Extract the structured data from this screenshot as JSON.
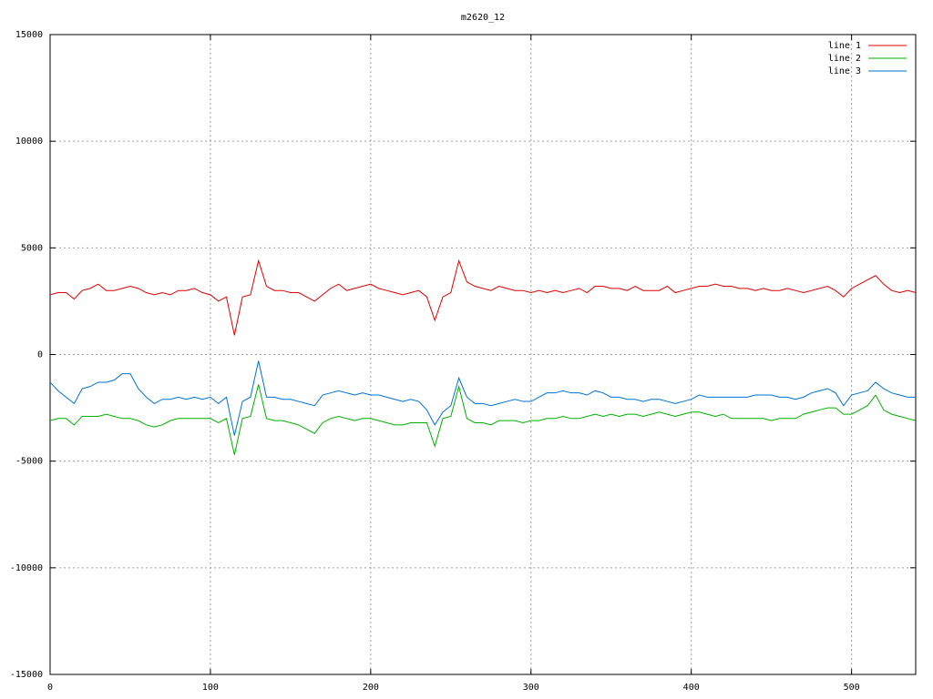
{
  "chart_data": {
    "type": "line",
    "title": "m2620_12",
    "x": [
      0,
      5,
      10,
      15,
      20,
      25,
      30,
      35,
      40,
      45,
      50,
      55,
      60,
      65,
      70,
      75,
      80,
      85,
      90,
      95,
      100,
      105,
      110,
      115,
      120,
      125,
      130,
      135,
      140,
      145,
      150,
      155,
      160,
      165,
      170,
      175,
      180,
      185,
      190,
      195,
      200,
      205,
      210,
      215,
      220,
      225,
      230,
      235,
      240,
      245,
      250,
      255,
      260,
      265,
      270,
      275,
      280,
      285,
      290,
      295,
      300,
      305,
      310,
      315,
      320,
      325,
      330,
      335,
      340,
      345,
      350,
      355,
      360,
      365,
      370,
      375,
      380,
      385,
      390,
      395,
      400,
      405,
      410,
      415,
      420,
      425,
      430,
      435,
      440,
      445,
      450,
      455,
      460,
      465,
      470,
      475,
      480,
      485,
      490,
      495,
      500,
      505,
      510,
      515,
      520,
      525,
      530,
      535,
      540
    ],
    "series": [
      {
        "name": "line 1",
        "color": "#e00000",
        "values": [
          2800,
          2900,
          2900,
          2600,
          3000,
          3100,
          3300,
          3000,
          3000,
          3100,
          3200,
          3100,
          2900,
          2800,
          2900,
          2800,
          3000,
          3000,
          3100,
          2900,
          2800,
          2500,
          2700,
          900,
          2700,
          2800,
          4400,
          3200,
          3000,
          3000,
          2900,
          2900,
          2700,
          2500,
          2800,
          3100,
          3300,
          3000,
          3100,
          3200,
          3300,
          3100,
          3000,
          2900,
          2800,
          2900,
          3000,
          2700,
          1600,
          2700,
          2900,
          4400,
          3400,
          3200,
          3100,
          3000,
          3200,
          3100,
          3000,
          3000,
          2900,
          3000,
          2900,
          3000,
          2900,
          3000,
          3100,
          2900,
          3200,
          3200,
          3100,
          3100,
          3000,
          3200,
          3000,
          3000,
          3000,
          3200,
          2900,
          3000,
          3100,
          3200,
          3200,
          3300,
          3200,
          3200,
          3100,
          3100,
          3000,
          3100,
          3000,
          3000,
          3100,
          3000,
          2900,
          3000,
          3100,
          3200,
          3000,
          2700,
          3100,
          3300,
          3500,
          3700,
          3300,
          3000,
          2900,
          3000,
          2900
        ]
      },
      {
        "name": "line 2",
        "color": "#00b000",
        "values": [
          -3100,
          -3000,
          -3000,
          -3300,
          -2900,
          -2900,
          -2900,
          -2800,
          -2900,
          -3000,
          -3000,
          -3100,
          -3300,
          -3400,
          -3300,
          -3100,
          -3000,
          -3000,
          -3000,
          -3000,
          -3000,
          -3200,
          -3000,
          -4700,
          -3000,
          -2900,
          -1400,
          -3000,
          -3100,
          -3100,
          -3200,
          -3300,
          -3500,
          -3700,
          -3200,
          -3000,
          -2900,
          -3000,
          -3100,
          -3000,
          -3000,
          -3100,
          -3200,
          -3300,
          -3300,
          -3200,
          -3200,
          -3200,
          -4300,
          -3000,
          -2900,
          -1500,
          -3000,
          -3200,
          -3200,
          -3300,
          -3100,
          -3100,
          -3100,
          -3200,
          -3100,
          -3100,
          -3000,
          -3000,
          -2900,
          -3000,
          -3000,
          -2900,
          -2800,
          -2900,
          -2800,
          -2900,
          -2800,
          -2800,
          -2900,
          -2800,
          -2700,
          -2800,
          -2900,
          -2800,
          -2700,
          -2700,
          -2800,
          -2900,
          -2800,
          -3000,
          -3000,
          -3000,
          -3000,
          -3000,
          -3100,
          -3000,
          -3000,
          -3000,
          -2800,
          -2700,
          -2600,
          -2500,
          -2500,
          -2800,
          -2800,
          -2600,
          -2400,
          -1900,
          -2600,
          -2800,
          -2900,
          -3000,
          -3100
        ]
      },
      {
        "name": "line 3",
        "color": "#0072d0",
        "values": [
          -1300,
          -1700,
          -2000,
          -2300,
          -1600,
          -1500,
          -1300,
          -1300,
          -1200,
          -900,
          -900,
          -1600,
          -2000,
          -2300,
          -2100,
          -2100,
          -2000,
          -2100,
          -2000,
          -2100,
          -2000,
          -2300,
          -2000,
          -3800,
          -2200,
          -2000,
          -300,
          -2000,
          -2000,
          -2100,
          -2100,
          -2200,
          -2300,
          -2400,
          -1900,
          -1800,
          -1700,
          -1800,
          -1900,
          -1800,
          -1900,
          -1900,
          -2000,
          -2100,
          -2200,
          -2100,
          -2200,
          -2600,
          -3300,
          -2700,
          -2400,
          -1100,
          -2000,
          -2300,
          -2300,
          -2400,
          -2300,
          -2200,
          -2100,
          -2200,
          -2200,
          -2000,
          -1800,
          -1800,
          -1700,
          -1800,
          -1800,
          -1900,
          -1700,
          -1800,
          -2000,
          -2000,
          -2100,
          -2100,
          -2200,
          -2100,
          -2100,
          -2200,
          -2300,
          -2200,
          -2100,
          -1900,
          -2000,
          -2000,
          -2000,
          -2000,
          -2000,
          -2000,
          -1900,
          -1900,
          -1900,
          -2000,
          -2000,
          -2100,
          -2000,
          -1800,
          -1700,
          -1600,
          -1800,
          -2400,
          -1900,
          -1800,
          -1700,
          -1300,
          -1600,
          -1800,
          -1900,
          -2000,
          -2000
        ]
      }
    ],
    "xlim": [
      0,
      540
    ],
    "ylim": [
      -15000,
      15000
    ],
    "xticks": [
      0,
      100,
      200,
      300,
      400,
      500
    ],
    "yticks": [
      -15000,
      -10000,
      -5000,
      0,
      5000,
      10000,
      15000
    ],
    "grid": true,
    "legend": "top-right"
  }
}
